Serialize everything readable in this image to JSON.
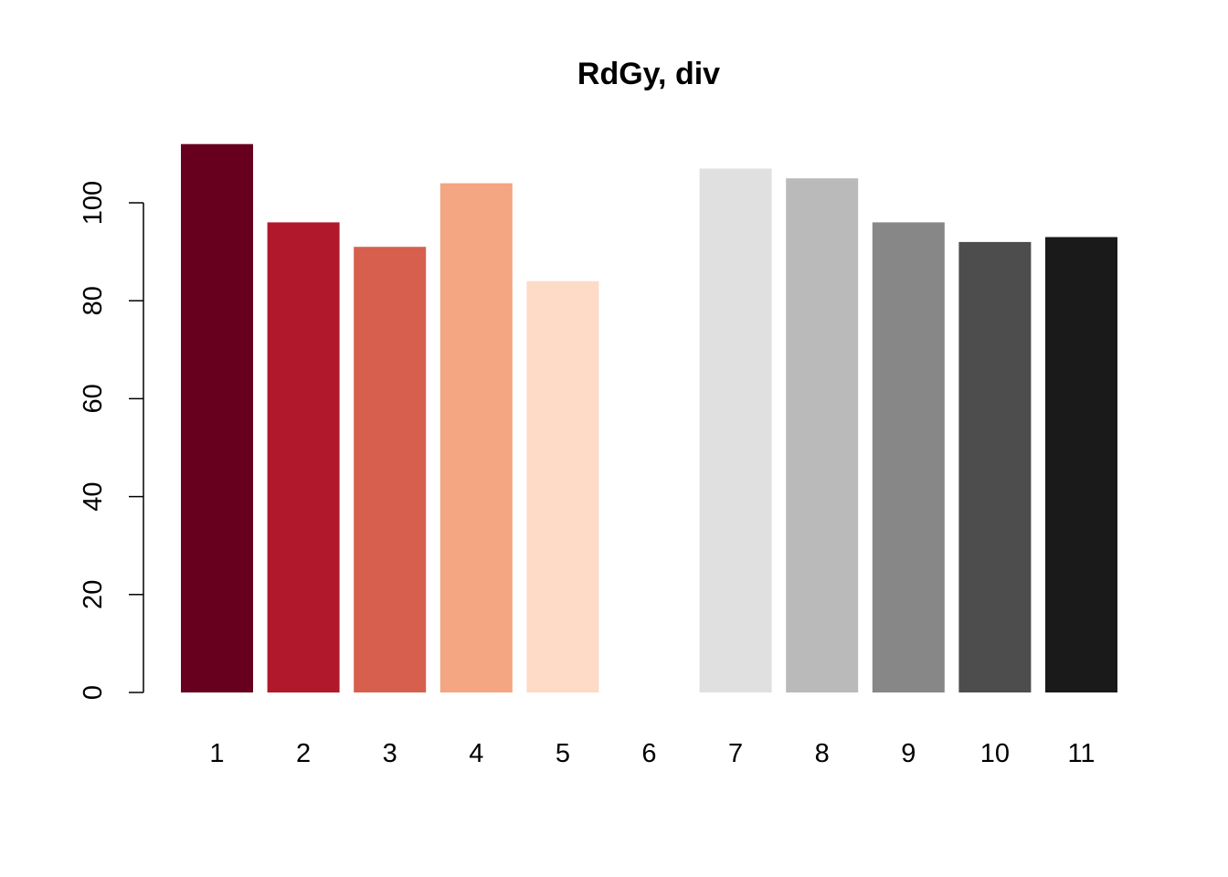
{
  "chart_data": {
    "type": "bar",
    "title": "RdGy, div",
    "xlabel": "",
    "ylabel": "",
    "categories": [
      "1",
      "2",
      "3",
      "4",
      "5",
      "6",
      "7",
      "8",
      "9",
      "10",
      "11"
    ],
    "values": [
      112,
      96,
      91,
      104,
      84,
      0,
      107,
      105,
      96,
      92,
      93
    ],
    "colors": [
      "#67001F",
      "#B2182B",
      "#D6604D",
      "#F4A582",
      "#FDDBC7",
      "#FFFFFF",
      "#E0E0E0",
      "#BABABA",
      "#878787",
      "#4D4D4D",
      "#1A1A1A"
    ],
    "ylim": [
      0,
      112
    ],
    "yticks": [
      0,
      20,
      40,
      60,
      80,
      100
    ],
    "grid": false,
    "legend": "none"
  }
}
